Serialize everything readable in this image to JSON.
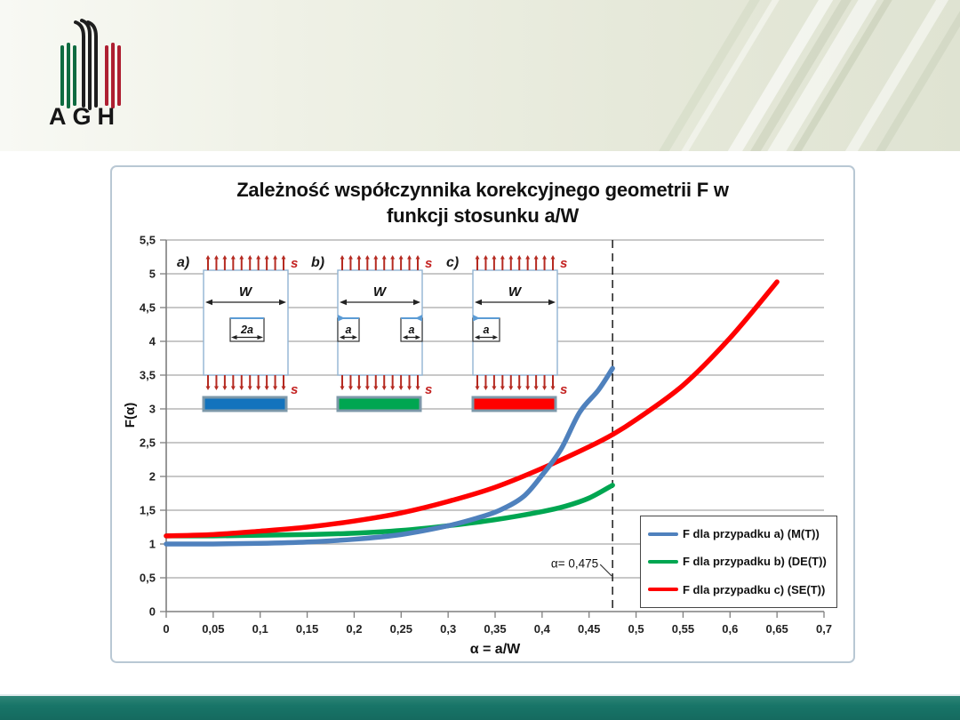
{
  "logo": {
    "text": "AGH"
  },
  "chart_data": {
    "type": "line",
    "title_lines": [
      "Zależność współczynnika korekcyjnego geometrii F w",
      "funkcji stosunku  a/W"
    ],
    "ylabel": "F(α)",
    "xlabel": "α = a/W",
    "xlim": [
      0,
      0.7
    ],
    "ylim": [
      0,
      5.5
    ],
    "grid": "horizontal-only",
    "legend_position": "inside-bottom-right",
    "xticks": {
      "values": [
        0,
        0.05,
        0.1,
        0.15,
        0.2,
        0.25,
        0.3,
        0.35,
        0.4,
        0.45,
        0.5,
        0.55,
        0.6,
        0.65,
        0.7
      ],
      "labels": [
        "0",
        "0,05",
        "0,1",
        "0,15",
        "0,2",
        "0,25",
        "0,3",
        "0,35",
        "0,4",
        "0,45",
        "0,5",
        "0,55",
        "0,6",
        "0,65",
        "0,7"
      ]
    },
    "yticks": {
      "values": [
        0,
        0.5,
        1,
        1.5,
        2,
        2.5,
        3,
        3.5,
        4,
        4.5,
        5,
        5.5
      ],
      "labels": [
        "0",
        "0,5",
        "1",
        "1,5",
        "2",
        "2,5",
        "3",
        "3,5",
        "4",
        "4,5",
        "5",
        "5,5"
      ]
    },
    "series": [
      {
        "name": "F dla przypadku a) (M(T))",
        "color": "#4f81bd",
        "z": 3,
        "points": [
          [
            0,
            1.0
          ],
          [
            0.05,
            1.0
          ],
          [
            0.1,
            1.01
          ],
          [
            0.15,
            1.03
          ],
          [
            0.2,
            1.07
          ],
          [
            0.25,
            1.14
          ],
          [
            0.3,
            1.27
          ],
          [
            0.33,
            1.38
          ],
          [
            0.355,
            1.5
          ],
          [
            0.38,
            1.7
          ],
          [
            0.4,
            2.02
          ],
          [
            0.42,
            2.4
          ],
          [
            0.44,
            2.95
          ],
          [
            0.46,
            3.28
          ],
          [
            0.475,
            3.6
          ]
        ]
      },
      {
        "name": "F dla przypadku b) (DE(T))",
        "color": "#00a651",
        "z": 1,
        "points": [
          [
            0,
            1.12
          ],
          [
            0.05,
            1.12
          ],
          [
            0.1,
            1.13
          ],
          [
            0.15,
            1.14
          ],
          [
            0.2,
            1.16
          ],
          [
            0.25,
            1.2
          ],
          [
            0.3,
            1.27
          ],
          [
            0.35,
            1.36
          ],
          [
            0.4,
            1.48
          ],
          [
            0.425,
            1.56
          ],
          [
            0.45,
            1.68
          ],
          [
            0.475,
            1.87
          ]
        ]
      },
      {
        "name": "F dla przypadku c) (SE(T))",
        "color": "#ff0000",
        "z": 2,
        "points": [
          [
            0,
            1.12
          ],
          [
            0.05,
            1.14
          ],
          [
            0.1,
            1.19
          ],
          [
            0.15,
            1.25
          ],
          [
            0.2,
            1.34
          ],
          [
            0.25,
            1.46
          ],
          [
            0.3,
            1.63
          ],
          [
            0.35,
            1.84
          ],
          [
            0.4,
            2.12
          ],
          [
            0.45,
            2.44
          ],
          [
            0.475,
            2.62
          ],
          [
            0.5,
            2.84
          ],
          [
            0.55,
            3.35
          ],
          [
            0.6,
            4.05
          ],
          [
            0.65,
            4.88
          ]
        ]
      }
    ],
    "annotation": {
      "text": "α= 0,475",
      "x": 0.475
    }
  },
  "diagrams": [
    {
      "label": "a)",
      "type": "center-crack",
      "width_label": "W",
      "crack_label": "2a",
      "load_label": "s",
      "swatch_color": "#1373bd"
    },
    {
      "label": "b)",
      "type": "double-edge-crack",
      "width_label": "W",
      "crack_label": "a",
      "load_label": "s",
      "swatch_color": "#00a651"
    },
    {
      "label": "c)",
      "type": "single-edge-crack",
      "width_label": "W",
      "crack_label": "a",
      "load_label": "s",
      "swatch_color": "#ff0000"
    }
  ],
  "colors": {
    "footer": "#187568",
    "band": "#e6e9da",
    "grid": "#a6a6a6",
    "axis": "#7f7f7f",
    "dashed_line": "#1a1a1a",
    "arrow_red": "#b52a21",
    "specimen_border": "#92b4d2",
    "crack_blue": "#5b9bd5"
  }
}
